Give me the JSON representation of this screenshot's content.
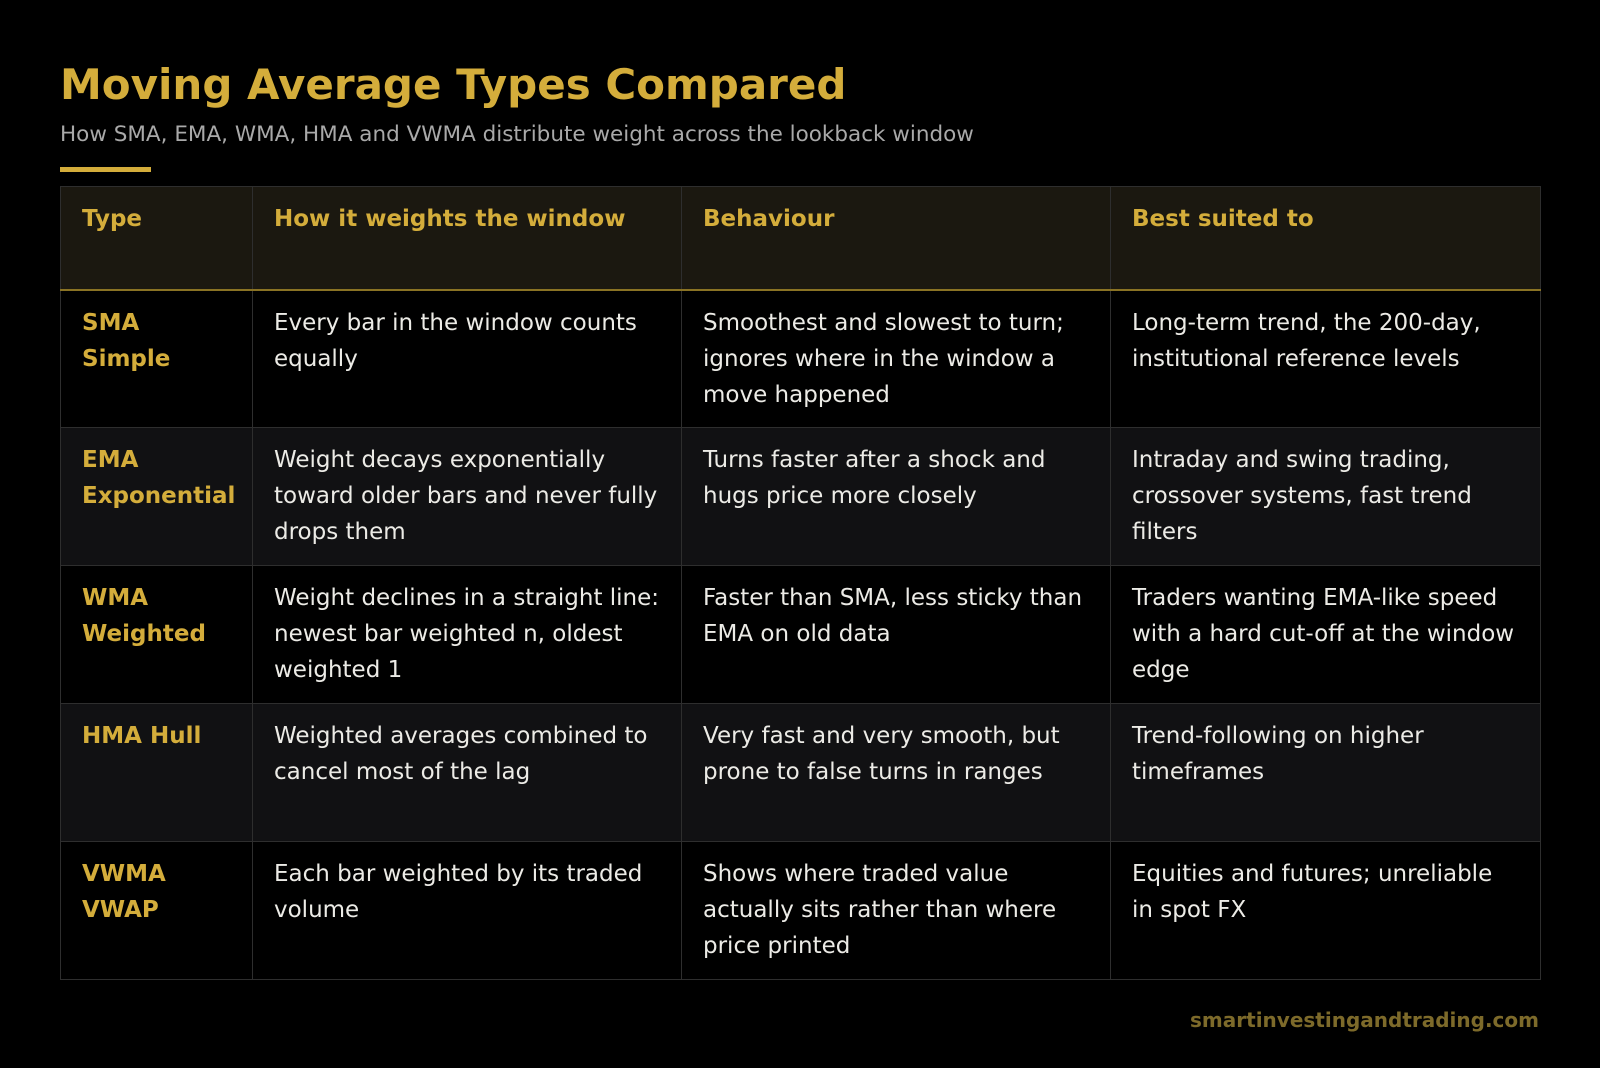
{
  "header": {
    "title": "Moving Average Types Compared",
    "subtitle": "How SMA, EMA, WMA, HMA and VWMA distribute weight across the lookback window"
  },
  "colors": {
    "accent": "#d4ad3b",
    "background": "#000000",
    "header_row": "#1b1810",
    "alt_row": "#111113",
    "footer": "#7d6a2a"
  },
  "table": {
    "columns": [
      "Type",
      "How it weights the window",
      "Behaviour",
      "Best suited to"
    ],
    "rows": [
      {
        "type_code": "SMA",
        "type_name": "Simple",
        "weighting": "Every bar in the window counts equally",
        "behaviour": "Smoothest and slowest to turn; ignores where in the window a move happened",
        "best_for": "Long-term trend, the 200-day, institutional reference levels"
      },
      {
        "type_code": "EMA",
        "type_name": "Exponential",
        "weighting": "Weight decays exponentially toward older bars and never fully drops them",
        "behaviour": "Turns faster after a shock and hugs price more closely",
        "best_for": "Intraday and swing trading, crossover systems, fast trend filters"
      },
      {
        "type_code": "WMA",
        "type_name": "Weighted",
        "weighting": "Weight declines in a straight line: newest bar weighted n, oldest weighted 1",
        "behaviour": "Faster than SMA, less sticky than EMA on old data",
        "best_for": "Traders wanting EMA-like speed with a hard cut-off at the window edge"
      },
      {
        "type_code": "HMA",
        "type_name": "Hull",
        "weighting": "Weighted averages combined to cancel most of the lag",
        "behaviour": "Very fast and very smooth, but prone to false turns in ranges",
        "best_for": "Trend-following on higher timeframes"
      },
      {
        "type_code": "VWMA",
        "type_name": "VWAP",
        "weighting": "Each bar weighted by its traded volume",
        "behaviour": "Shows where traded value actually sits rather than where price printed",
        "best_for": "Equities and futures; unreliable in spot FX"
      }
    ]
  },
  "footer": {
    "source": "smartinvestingandtrading.com"
  }
}
